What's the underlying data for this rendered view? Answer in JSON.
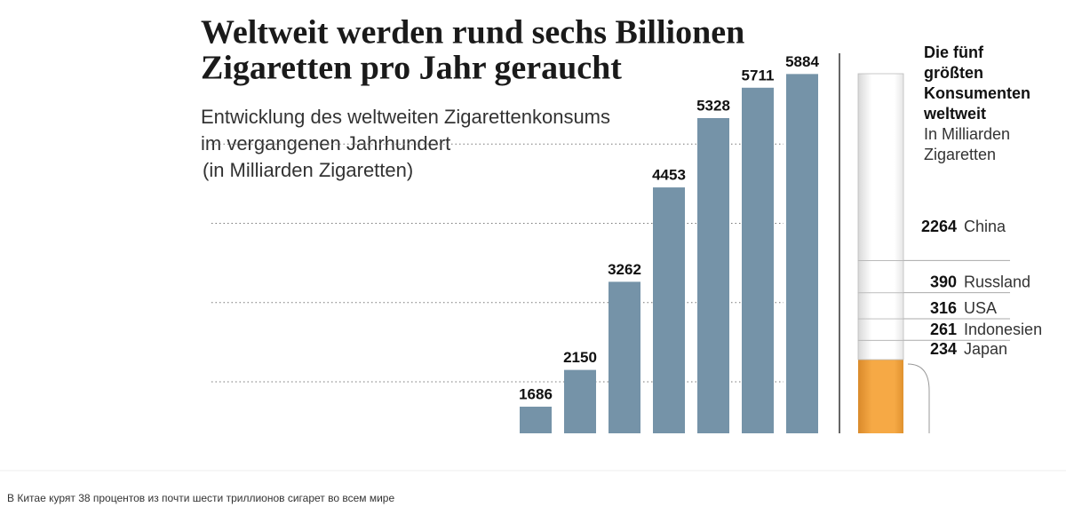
{
  "chart_data": [
    {
      "type": "bar",
      "title": [
        "Weltweit werden rund sechs Billionen",
        "Zigaretten pro Jahr geraucht"
      ],
      "subtitle": [
        "Entwicklung des weltweiten Zigarettenkonsums",
        "im vergangenen Jahrhundert",
        "(in Milliarden Zigaretten)"
      ],
      "categories": [
        null,
        null,
        null,
        null,
        null,
        null,
        null
      ],
      "values": [
        1686,
        2150,
        3262,
        4453,
        5328,
        5711,
        5884
      ],
      "color": "#7593a8",
      "ylim": [
        1350,
        6000
      ],
      "yticks": [
        2000,
        3000,
        4000,
        5000
      ],
      "tick_labels": false,
      "grid": true
    },
    {
      "type": "stacked-bar",
      "title": [
        "Die fünf",
        "größten",
        "Konsumenten",
        "weltweit"
      ],
      "subtitle": [
        "In Milliarden",
        "Zigaretten"
      ],
      "categories": [
        "China",
        "Russland",
        "USA",
        "Indonesien",
        "Japan"
      ],
      "values": [
        2264,
        390,
        316,
        261,
        234
      ],
      "color": "#ffffff"
    }
  ],
  "caption": "В Китае курят 38 процентов из почти шести триллионов сигарет во всем мире"
}
